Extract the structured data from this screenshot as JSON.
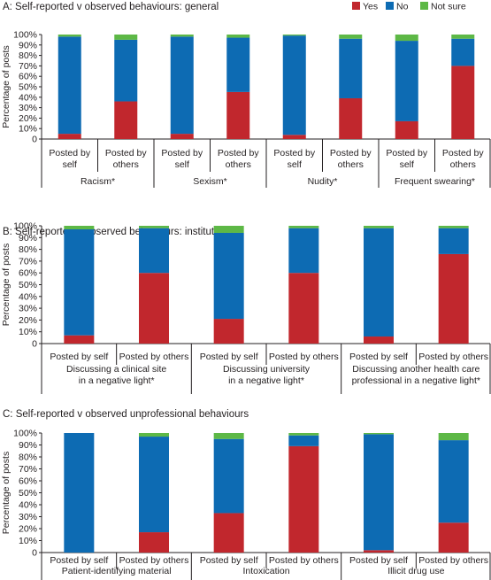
{
  "colors": {
    "Yes": "#c1272d",
    "No": "#0d6bb3",
    "Not sure": "#5db846"
  },
  "legend": [
    {
      "label": "Yes",
      "color": "#c1272d"
    },
    {
      "label": "No",
      "color": "#0d6bb3"
    },
    {
      "label": "Not sure",
      "color": "#5db846"
    }
  ],
  "chart_data": [
    {
      "type": "bar",
      "stacked": true,
      "title": "A: Self-reported v observed behaviours: general",
      "ylabel": "Percentage of posts",
      "ylim": [
        0,
        100
      ],
      "yticks": [
        "0",
        "10%",
        "20%",
        "30%",
        "40%",
        "50%",
        "60%",
        "70%",
        "80%",
        "90%",
        "100%"
      ],
      "groups": [
        {
          "label": "Racism*",
          "bars": [
            {
              "label": "Posted by self",
              "values": {
                "Yes": 5,
                "No": 93,
                "Not sure": 2
              }
            },
            {
              "label": "Posted by others",
              "values": {
                "Yes": 36,
                "No": 59,
                "Not sure": 5
              }
            }
          ]
        },
        {
          "label": "Sexism*",
          "bars": [
            {
              "label": "Posted by self",
              "values": {
                "Yes": 5,
                "No": 93,
                "Not sure": 2
              }
            },
            {
              "label": "Posted by others",
              "values": {
                "Yes": 45,
                "No": 52,
                "Not sure": 3
              }
            }
          ]
        },
        {
          "label": "Nudity*",
          "bars": [
            {
              "label": "Posted by self",
              "values": {
                "Yes": 4,
                "No": 95,
                "Not sure": 1
              }
            },
            {
              "label": "Posted by others",
              "values": {
                "Yes": 39,
                "No": 57,
                "Not sure": 4
              }
            }
          ]
        },
        {
          "label": "Frequent swearing*",
          "bars": [
            {
              "label": "Posted by self",
              "values": {
                "Yes": 17,
                "No": 77,
                "Not sure": 6
              }
            },
            {
              "label": "Posted by others",
              "values": {
                "Yes": 70,
                "No": 26,
                "Not sure": 4
              }
            }
          ]
        }
      ]
    },
    {
      "type": "bar",
      "stacked": true,
      "title": "B: Self-reported v observed behaviours: institutions",
      "ylabel": "Percentage of posts",
      "ylim": [
        0,
        100
      ],
      "yticks": [
        "0",
        "10%",
        "20%",
        "30%",
        "40%",
        "50%",
        "60%",
        "70%",
        "80%",
        "90%",
        "100%"
      ],
      "groups": [
        {
          "label": "Discussing a clinical site in a negative light*",
          "bars": [
            {
              "label": "Posted by self",
              "values": {
                "Yes": 7,
                "No": 90,
                "Not sure": 3
              }
            },
            {
              "label": "Posted by others",
              "values": {
                "Yes": 60,
                "No": 38,
                "Not sure": 2
              }
            }
          ]
        },
        {
          "label": "Discussing university in a negative light*",
          "bars": [
            {
              "label": "Posted by self",
              "values": {
                "Yes": 21,
                "No": 73,
                "Not sure": 6
              }
            },
            {
              "label": "Posted by others",
              "values": {
                "Yes": 60,
                "No": 38,
                "Not sure": 2
              }
            }
          ]
        },
        {
          "label": "Discussing another health care professional in a negative light*",
          "bars": [
            {
              "label": "Posted by self",
              "values": {
                "Yes": 6,
                "No": 92,
                "Not sure": 2
              }
            },
            {
              "label": "Posted by others",
              "values": {
                "Yes": 76,
                "No": 22,
                "Not sure": 2
              }
            }
          ]
        }
      ]
    },
    {
      "type": "bar",
      "stacked": true,
      "title": "C: Self-reported v observed unprofessional behaviours",
      "ylabel": "Percentage of posts",
      "ylim": [
        0,
        100
      ],
      "yticks": [
        "0",
        "10%",
        "20%",
        "30%",
        "40%",
        "50%",
        "60%",
        "70%",
        "80%",
        "90%",
        "100%"
      ],
      "groups": [
        {
          "label": "Patient-identifying material",
          "bars": [
            {
              "label": "Posted by self",
              "values": {
                "Yes": 0,
                "No": 100,
                "Not sure": 0
              }
            },
            {
              "label": "Posted by others",
              "values": {
                "Yes": 17,
                "No": 80,
                "Not sure": 3
              }
            }
          ]
        },
        {
          "label": "Intoxication",
          "bars": [
            {
              "label": "Posted by self",
              "values": {
                "Yes": 33,
                "No": 62,
                "Not sure": 5
              }
            },
            {
              "label": "Posted by others",
              "values": {
                "Yes": 89,
                "No": 9,
                "Not sure": 2
              }
            }
          ]
        },
        {
          "label": "Illicit drug use",
          "bars": [
            {
              "label": "Posted by self",
              "values": {
                "Yes": 2,
                "No": 97,
                "Not sure": 1
              }
            },
            {
              "label": "Posted by others",
              "values": {
                "Yes": 25,
                "No": 69,
                "Not sure": 6
              }
            }
          ]
        }
      ]
    }
  ]
}
